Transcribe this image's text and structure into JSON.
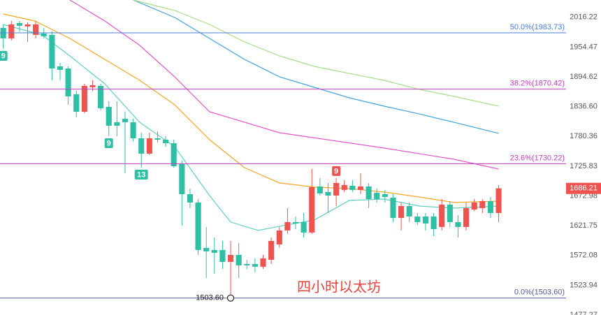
{
  "chart_data": {
    "type": "candlestick",
    "log_scale": true,
    "grid": false,
    "ylim": [
      1477.27,
      2053.0
    ],
    "xlim": [
      -0.4,
      69.3
    ],
    "yticks": [
      2016.22,
      1954.47,
      1894.62,
      {
        "value": 1836.6,
        "label": "1836.60"
      },
      1780.36,
      1725.83,
      1672.98,
      1621.75,
      1572.08,
      1523.94,
      1477.27
    ],
    "up_color": "#ef5350",
    "down_color": "#2ebfa5",
    "open": [
      1994.0,
      1972.3,
      2004.2,
      1997.0,
      1979.5,
      1982.4,
      1979.5,
      1915.5,
      1911.3,
      1860.4,
      1826.7,
      1874.1,
      1876.8,
      1836.1,
      1806.8,
      1813.4,
      1806.8,
      1776.8,
      1748.5,
      1776.8,
      1774.2,
      1767.7,
      1729.5,
      1676.1,
      1661.5,
      1584.5,
      1581.1,
      1581.1,
      1561.6,
      1573.0,
      1558.1,
      1558.1,
      1553.7,
      1565.0,
      1590.3,
      1613.7,
      1627.9,
      1627.9,
      1610.2,
      1689.6,
      1679.7,
      1673.6,
      1683.5,
      1690.8,
      1683.5,
      1689.6,
      1678.5,
      1676.1,
      1670.0,
      1635.0,
      1655.4,
      1637.4,
      1637.4,
      1637.4,
      1619.6,
      1657.9,
      1627.9,
      1619.6,
      1649.4,
      1651.8,
      1663.9,
      1643.4
    ],
    "high": [
      2001.3,
      2008.6,
      2008.6,
      2005.7,
      2008.6,
      1994.0,
      1986.7,
      1922.5,
      1915.5,
      1867.2,
      1880.9,
      1888.0,
      1880.9,
      1846.8,
      1846.8,
      1826.7,
      1813.4,
      1787.2,
      1787.2,
      1789.8,
      1780.7,
      1774.2,
      1735.8,
      1685.9,
      1667.5,
      1619.6,
      1602.0,
      1596.1,
      1596.1,
      1592.6,
      1565.0,
      1567.3,
      1573.0,
      1602.0,
      1619.6,
      1651.8,
      1637.4,
      1643.4,
      1720.7,
      1704.5,
      1695.8,
      1704.5,
      1700.8,
      1700.8,
      1713.2,
      1695.8,
      1685.9,
      1683.5,
      1676.1,
      1661.5,
      1661.5,
      1643.4,
      1643.4,
      1643.4,
      1667.5,
      1663.9,
      1639.8,
      1661.5,
      1667.5,
      1667.5,
      1671.2,
      1692.1
    ],
    "low": [
      1950.8,
      1968.0,
      1986.7,
      1965.1,
      1972.3,
      1972.3,
      1887.7,
      1887.7,
      1840.1,
      1816.0,
      1824.0,
      1867.2,
      1829.4,
      1780.7,
      1780.7,
      1713.2,
      1771.6,
      1723.2,
      1746.0,
      1769.0,
      1761.3,
      1723.2,
      1622.0,
      1651.8,
      1573.0,
      1535.6,
      1542.4,
      1550.2,
      1503.6,
      1535.6,
      1550.2,
      1544.6,
      1550.2,
      1558.1,
      1584.5,
      1607.8,
      1616.0,
      1602.0,
      1607.8,
      1673.6,
      1643.4,
      1655.4,
      1679.7,
      1679.7,
      1676.1,
      1651.8,
      1661.5,
      1661.5,
      1627.9,
      1613.7,
      1627.9,
      1623.1,
      1613.7,
      1604.3,
      1613.7,
      1619.6,
      1602.0,
      1613.7,
      1647.0,
      1643.4,
      1635.0,
      1627.9
    ],
    "close": [
      1972.3,
      2001.3,
      1998.4,
      2001.3,
      2001.3,
      1976.6,
      1911.3,
      1908.5,
      1856.3,
      1826.7,
      1876.8,
      1878.2,
      1833.4,
      1800.3,
      1800.3,
      1806.8,
      1776.8,
      1748.5,
      1776.8,
      1774.2,
      1767.7,
      1725.7,
      1676.1,
      1661.5,
      1581.1,
      1578.8,
      1576.5,
      1561.6,
      1573.0,
      1555.9,
      1555.9,
      1553.7,
      1567.3,
      1596.1,
      1613.7,
      1627.9,
      1625.5,
      1610.2,
      1688.4,
      1677.3,
      1673.6,
      1695.8,
      1692.1,
      1683.5,
      1689.6,
      1667.5,
      1667.5,
      1671.2,
      1635.0,
      1655.4,
      1637.4,
      1627.9,
      1625.5,
      1616.0,
      1657.9,
      1627.9,
      1619.6,
      1651.8,
      1661.5,
      1663.9,
      1643.4,
      1686.21
    ],
    "series": [
      {
        "color": "#5ccfc0",
        "x": [
          0,
          4.8,
          8.2,
          12.5,
          16.8,
          21.1,
          25.4,
          28,
          31.4,
          34.9,
          38.3,
          42.6,
          46.9,
          51.2,
          55.5,
          61
        ],
        "values": [
          2001.3,
          1979.5,
          1936.6,
          1880.9,
          1806.8,
          1761.3,
          1673.6,
          1627.9,
          1613.7,
          1623.1,
          1631.4,
          1665.1,
          1667.5,
          1655.4,
          1651.8,
          1655.4
        ]
      },
      {
        "color": "#f5a623",
        "x": [
          0,
          3.9,
          8.2,
          12.5,
          16.8,
          21.1,
          25.4,
          29.7,
          34,
          38.3,
          42.6,
          46.9,
          51.2,
          55.5,
          61
        ],
        "values": [
          2023.3,
          2008.6,
          1972.3,
          1929.5,
          1887.7,
          1840.1,
          1774.2,
          1723.2,
          1695.8,
          1688.4,
          1685.9,
          1679.7,
          1671.2,
          1661.5,
          1663.9
        ]
      },
      {
        "color": "#e356c8",
        "x": [
          8.2,
          12.5,
          16.8,
          21.1,
          25.4,
          34,
          46.9,
          55.5,
          61
        ],
        "values": [
          2053.0,
          2008.6,
          1958.0,
          1894.6,
          1826.7,
          1787.2,
          1758.7,
          1738.3,
          1720.7
        ]
      },
      {
        "color": "#3ea3dc",
        "x": [
          16,
          21.1,
          25.4,
          29.7,
          34,
          38.3,
          42.6,
          46.9,
          51.2,
          55.5,
          61
        ],
        "values": [
          2053.0,
          2015.9,
          1972.3,
          1929.5,
          1894.6,
          1874.0,
          1853.6,
          1837.4,
          1822.7,
          1806.8,
          1786.0
        ]
      },
      {
        "color": "#a8dc8c",
        "x": [
          16,
          21.1,
          25.4,
          29.7,
          34,
          38.3,
          42.6,
          46.9,
          51.2,
          55.5,
          61
        ],
        "values": [
          2053.0,
          2030.7,
          2001.3,
          1965.1,
          1936.6,
          1915.5,
          1901.5,
          1887.7,
          1870.0,
          1856.3,
          1837.4
        ]
      }
    ],
    "levels": [
      {
        "value": 1983.73,
        "label": "50.0%(1983.73)",
        "color": "#4a7fd4"
      },
      {
        "value": 1870.42,
        "label": "38.2%(1870.42)",
        "color": "#c23bc4"
      },
      {
        "value": 1730.22,
        "label": "23.6%(1730.22)",
        "color": "#c23bc4"
      },
      {
        "value": 1503.6,
        "label": "0.0%(1503.60)",
        "color": "#4f5b93"
      }
    ],
    "markers": [
      {
        "index": 0,
        "label": "9",
        "position": "below",
        "color": "#2ebfa5"
      },
      {
        "index": 13,
        "label": "9",
        "position": "below",
        "color": "#2ebfa5"
      },
      {
        "index": 17,
        "label": "13",
        "position": "below",
        "color": "#2ebfa5"
      },
      {
        "index": 41,
        "label": "9",
        "position": "above",
        "color": "#ef5350"
      }
    ],
    "low_annotation": {
      "index": 28,
      "value": 1503.6,
      "label": "1503.60"
    },
    "last_price": 1686.21,
    "caption": "四小时以太坊"
  }
}
